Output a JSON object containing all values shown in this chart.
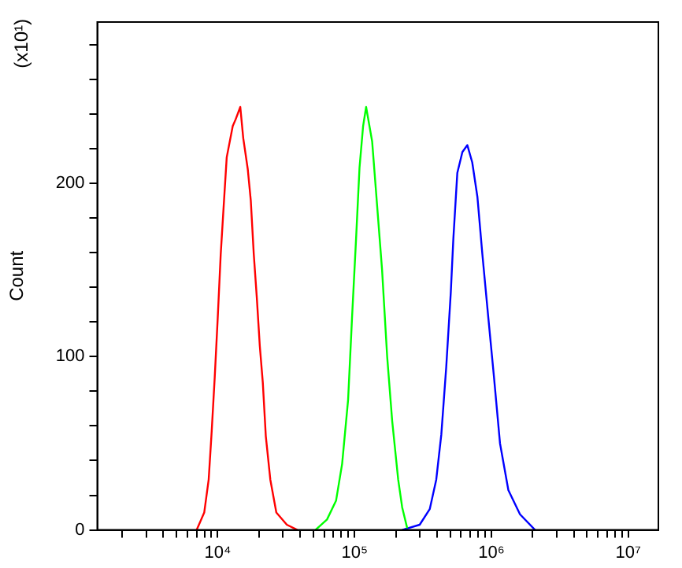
{
  "chart_data": {
    "type": "line",
    "ylabel": "Count",
    "annotations": [
      "(x10¹)"
    ],
    "log": "x",
    "grid": false,
    "legend": false,
    "marker": "none",
    "line_style": "solid",
    "xlim": [
      1318,
      16600000
    ],
    "xticks": [
      {
        "value": 2000,
        "label": null
      },
      {
        "value": 3000,
        "label": null
      },
      {
        "value": 4000,
        "label": null
      },
      {
        "value": 5000,
        "label": null
      },
      {
        "value": 6000,
        "label": null
      },
      {
        "value": 7000,
        "label": null
      },
      {
        "value": 8000,
        "label": null
      },
      {
        "value": 9000,
        "label": null
      },
      {
        "value": 10000,
        "label": "10⁴"
      },
      {
        "value": 20000,
        "label": null
      },
      {
        "value": 30000,
        "label": null
      },
      {
        "value": 40000,
        "label": null
      },
      {
        "value": 50000,
        "label": null
      },
      {
        "value": 60000,
        "label": null
      },
      {
        "value": 70000,
        "label": null
      },
      {
        "value": 80000,
        "label": null
      },
      {
        "value": 90000,
        "label": null
      },
      {
        "value": 100000,
        "label": "10⁵"
      },
      {
        "value": 200000,
        "label": null
      },
      {
        "value": 300000,
        "label": null
      },
      {
        "value": 400000,
        "label": null
      },
      {
        "value": 500000,
        "label": null
      },
      {
        "value": 600000,
        "label": null
      },
      {
        "value": 700000,
        "label": null
      },
      {
        "value": 800000,
        "label": null
      },
      {
        "value": 900000,
        "label": null
      },
      {
        "value": 1000000,
        "label": "10⁶"
      },
      {
        "value": 2000000,
        "label": null
      },
      {
        "value": 3000000,
        "label": null
      },
      {
        "value": 4000000,
        "label": null
      },
      {
        "value": 5000000,
        "label": null
      },
      {
        "value": 6000000,
        "label": null
      },
      {
        "value": 7000000,
        "label": null
      },
      {
        "value": 8000000,
        "label": null
      },
      {
        "value": 9000000,
        "label": null
      },
      {
        "value": 10000000,
        "label": "10⁷"
      }
    ],
    "ylim": [
      0,
      293
    ],
    "yticks": [
      0,
      {
        "value": 20,
        "label": null
      },
      {
        "value": 40,
        "label": null
      },
      {
        "value": 60,
        "label": null
      },
      {
        "value": 80,
        "label": null
      },
      100,
      {
        "value": 120,
        "label": null
      },
      {
        "value": 140,
        "label": null
      },
      {
        "value": 160,
        "label": null
      },
      {
        "value": 180,
        "label": null
      },
      200,
      {
        "value": 220,
        "label": null
      },
      {
        "value": 240,
        "label": null
      },
      {
        "value": 260,
        "label": null
      },
      {
        "value": 280,
        "label": null
      }
    ],
    "series": [
      {
        "color": "#ff0000",
        "x": [
          7020,
          7970,
          8590,
          9040,
          9510,
          10000,
          10520,
          11060,
          11640,
          12880,
          13550,
          14620,
          15370,
          16590,
          17450,
          18350,
          19310,
          20310,
          21360,
          22470,
          24240,
          26820,
          32010,
          38210
        ],
        "values": [
          0,
          10,
          29,
          57,
          88,
          122,
          159,
          187,
          215,
          233,
          237,
          244,
          226,
          208,
          190,
          159,
          134,
          106,
          85,
          54,
          29,
          10,
          3,
          0
        ]
      },
      {
        "color": "#00ff00",
        "x": [
          51800,
          62900,
          73300,
          81100,
          89700,
          95800,
          102600,
          108700,
          115500,
          121500,
          134500,
          146200,
          158900,
          173100,
          188300,
          208400,
          222900,
          242500
        ],
        "values": [
          0,
          6,
          17,
          38,
          75,
          122,
          168,
          209,
          233,
          244,
          224,
          187,
          150,
          100,
          63,
          29,
          13,
          1
        ]
      },
      {
        "color": "#0000ff",
        "x": [
          222900,
          299200,
          354300,
          395300,
          430500,
          467700,
          504900,
          527200,
          563600,
          613800,
          666800,
          724600,
          790500,
          859000,
          950600,
          1044700,
          1155600,
          1330000,
          1618000,
          2084000
        ],
        "values": [
          0,
          3,
          12,
          29,
          55,
          94,
          137,
          168,
          206,
          218,
          222,
          212,
          192,
          159,
          122,
          88,
          50,
          23,
          9,
          0
        ]
      }
    ]
  }
}
